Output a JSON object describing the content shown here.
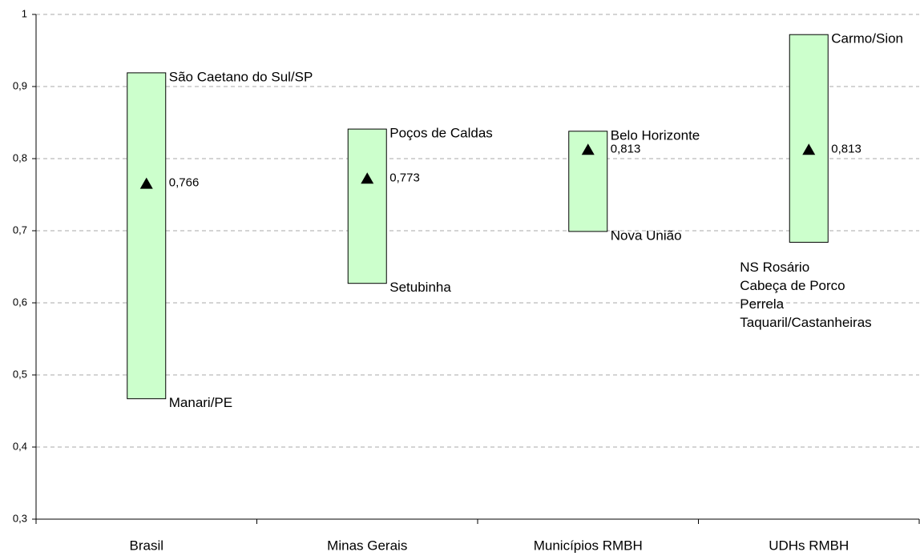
{
  "chart_data": {
    "type": "range",
    "categories": [
      "Brasil",
      "Minas Gerais",
      "Municípios RMBH",
      "UDHs RMBH"
    ],
    "series": [
      {
        "name": null,
        "color": "#ccffcc",
        "high": [
          0.919,
          0.841,
          0.838,
          0.972
        ],
        "low": [
          0.467,
          0.627,
          0.699,
          0.684
        ],
        "mean": [
          0.766,
          0.773,
          0.813,
          0.813
        ],
        "mean_labels": [
          "0,766",
          "0,773",
          "0,813",
          "0,813"
        ],
        "high_names": [
          "São Caetano do Sul/SP",
          "Poços de Caldas",
          "Belo Horizonte",
          "Carmo/Sion"
        ],
        "low_names": [
          [
            "Manari/PE"
          ],
          [
            "Setubinha"
          ],
          [
            "Nova União"
          ],
          [
            "NS Rosário",
            "Cabeça de Porco",
            "Perrela",
            "Taquaril/Castanheiras"
          ]
        ]
      }
    ],
    "ylim": [
      0.3,
      1
    ],
    "yticks": [
      {
        "value": 0.3,
        "label": "0,3"
      },
      {
        "value": 0.4,
        "label": "0,4"
      },
      {
        "value": 0.5,
        "label": "0,5"
      },
      {
        "value": 0.6,
        "label": "0,6"
      },
      {
        "value": 0.7,
        "label": "0,7"
      },
      {
        "value": 0.8,
        "label": "0,8"
      },
      {
        "value": 0.9,
        "label": "0,9"
      },
      1
    ],
    "grid": true
  }
}
